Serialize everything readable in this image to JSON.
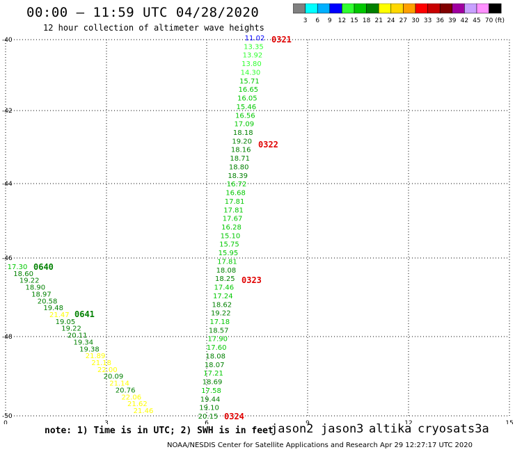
{
  "header": {
    "title": "00:00 – 11:59 UTC 04/28/2020",
    "subtitle": "12 hour collection of altimeter wave heights"
  },
  "color_scale": {
    "labels": [
      "3",
      "6",
      "9",
      "12",
      "15",
      "18",
      "21",
      "24",
      "27",
      "30",
      "33",
      "36",
      "39",
      "42",
      "45",
      "70"
    ],
    "colors": [
      "#808080",
      "#00ffff",
      "#00b0ff",
      "#0000ff",
      "#30ff30",
      "#00c800",
      "#008000",
      "#ffff00",
      "#ffd800",
      "#ffa000",
      "#ff0000",
      "#c80000",
      "#800000",
      "#a000a0",
      "#c8a0ff",
      "#ff90ff",
      "#000000"
    ],
    "unit": "(ft)"
  },
  "axes": {
    "x_ticks": [
      "0",
      "3",
      "6",
      "9",
      "12",
      "15"
    ],
    "y_ticks": [
      "-40",
      "-42",
      "-44",
      "-46",
      "-48",
      "-50"
    ]
  },
  "passes": [
    {
      "label": "0321",
      "color": "#e00000"
    },
    {
      "label": "0322",
      "color": "#e00000"
    },
    {
      "label": "0323",
      "color": "#e00000"
    },
    {
      "label": "0324",
      "color": "#e00000"
    },
    {
      "label": "0640",
      "color": "#008000"
    },
    {
      "label": "0641",
      "color": "#008000"
    }
  ],
  "track_a": [
    {
      "v": "11.02",
      "c": "#0000ff"
    },
    {
      "v": "13.35",
      "c": "#30ff30"
    },
    {
      "v": "13.92",
      "c": "#30ff30"
    },
    {
      "v": "13.80",
      "c": "#30ff30"
    },
    {
      "v": "14.30",
      "c": "#30ff30"
    },
    {
      "v": "15.71",
      "c": "#00c800"
    },
    {
      "v": "16.65",
      "c": "#00c800"
    },
    {
      "v": "16.05",
      "c": "#00c800"
    },
    {
      "v": "15.46",
      "c": "#00c800"
    },
    {
      "v": "16.56",
      "c": "#00c800"
    },
    {
      "v": "17.09",
      "c": "#00c800"
    },
    {
      "v": "18.18",
      "c": "#008000"
    },
    {
      "v": "19.20",
      "c": "#008000"
    },
    {
      "v": "18.16",
      "c": "#008000"
    },
    {
      "v": "18.71",
      "c": "#008000"
    },
    {
      "v": "18.80",
      "c": "#008000"
    },
    {
      "v": "18.39",
      "c": "#008000"
    },
    {
      "v": "16.72",
      "c": "#00c800"
    },
    {
      "v": "16.68",
      "c": "#00c800"
    },
    {
      "v": "17.81",
      "c": "#00c800"
    },
    {
      "v": "17.81",
      "c": "#00c800"
    },
    {
      "v": "17.67",
      "c": "#00c800"
    },
    {
      "v": "16.28",
      "c": "#00c800"
    },
    {
      "v": "15.10",
      "c": "#00c800"
    },
    {
      "v": "15.75",
      "c": "#00c800"
    },
    {
      "v": "15.95",
      "c": "#00c800"
    },
    {
      "v": "17.81",
      "c": "#00c800"
    },
    {
      "v": "18.08",
      "c": "#008000"
    },
    {
      "v": "18.25",
      "c": "#008000"
    },
    {
      "v": "17.46",
      "c": "#00c800"
    },
    {
      "v": "17.24",
      "c": "#00c800"
    },
    {
      "v": "18.62",
      "c": "#008000"
    },
    {
      "v": "19.22",
      "c": "#008000"
    },
    {
      "v": "17.18",
      "c": "#00c800"
    },
    {
      "v": "18.57",
      "c": "#008000"
    },
    {
      "v": "17.90",
      "c": "#00c800"
    },
    {
      "v": "17.60",
      "c": "#00c800"
    },
    {
      "v": "18.08",
      "c": "#008000"
    },
    {
      "v": "18.07",
      "c": "#008000"
    },
    {
      "v": "17.21",
      "c": "#00c800"
    },
    {
      "v": "18.69",
      "c": "#008000"
    },
    {
      "v": "17.58",
      "c": "#00c800"
    },
    {
      "v": "19.44",
      "c": "#008000"
    },
    {
      "v": "19.10",
      "c": "#008000"
    },
    {
      "v": "20.15",
      "c": "#008000"
    }
  ],
  "track_b": [
    {
      "v": "17.30",
      "c": "#00c800"
    },
    {
      "v": "18.60",
      "c": "#008000"
    },
    {
      "v": "19.22",
      "c": "#008000"
    },
    {
      "v": "18.90",
      "c": "#008000"
    },
    {
      "v": "18.97",
      "c": "#008000"
    },
    {
      "v": "20.58",
      "c": "#008000"
    },
    {
      "v": "19.48",
      "c": "#008000"
    },
    {
      "v": "21.47",
      "c": "#ffff00"
    },
    {
      "v": "19.05",
      "c": "#008000"
    },
    {
      "v": "19.22",
      "c": "#008000"
    },
    {
      "v": "20.11",
      "c": "#008000"
    },
    {
      "v": "19.34",
      "c": "#008000"
    },
    {
      "v": "19.38",
      "c": "#008000"
    },
    {
      "v": "21.89",
      "c": "#ffff00"
    },
    {
      "v": "21.18",
      "c": "#ffff00"
    },
    {
      "v": "22.00",
      "c": "#ffff00"
    },
    {
      "v": "20.09",
      "c": "#008000"
    },
    {
      "v": "21.14",
      "c": "#ffff00"
    },
    {
      "v": "20.76",
      "c": "#008000"
    },
    {
      "v": "22.06",
      "c": "#ffff00"
    },
    {
      "v": "21.62",
      "c": "#ffff00"
    },
    {
      "v": "21.46",
      "c": "#ffff00"
    }
  ],
  "footer": {
    "note": "note: 1) Time is in UTC; 2) SWH is in feet",
    "satellites": [
      {
        "name": "jason2",
        "color": "#0000e0"
      },
      {
        "name": "jason3",
        "color": "#00a000"
      },
      {
        "name": "altika",
        "color": "#ff9000"
      },
      {
        "name": "cryosat",
        "color": "#e00000"
      },
      {
        "name": "s3a",
        "color": "#800000"
      }
    ],
    "credit": "NOAA/NESDIS Center for Satellite Applications and Research   Apr 29 12:27:17 UTC 2020"
  }
}
